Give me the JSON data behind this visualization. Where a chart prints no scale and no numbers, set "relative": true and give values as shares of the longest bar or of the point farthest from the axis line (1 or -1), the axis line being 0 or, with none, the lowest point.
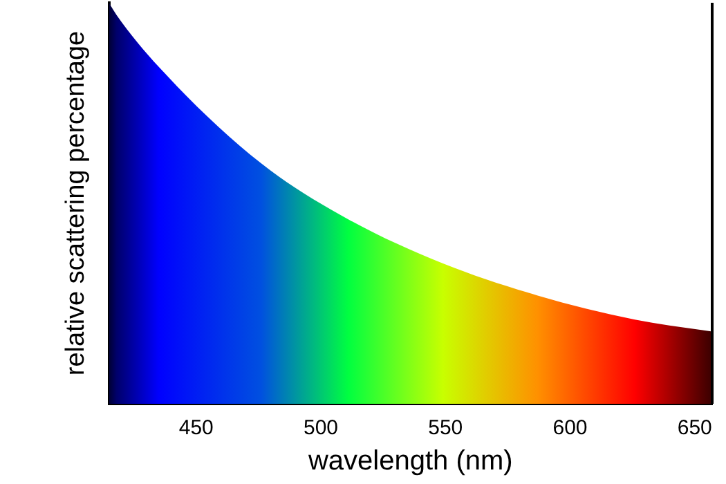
{
  "chart_data": {
    "type": "area",
    "relative": true,
    "xlabel": "wavelength (nm)",
    "ylabel": "relative scattering percentage",
    "x": [
      415,
      418,
      435,
      476,
      511,
      549,
      587,
      626,
      657
    ],
    "xlim": [
      415,
      657
    ],
    "xticks": [
      450,
      500,
      550,
      600,
      650
    ],
    "series": [
      {
        "values": [
          1,
          0.97,
          0.84,
          0.6,
          0.46,
          0.35,
          0.27,
          0.21,
          0.18
        ],
        "colors": [
          "#000033",
          "#00006a",
          "#0000ff",
          "#0050e0",
          "#00ff40",
          "#c8ff00",
          "#ff9000",
          "#ff0000",
          "#3a0000"
        ]
      }
    ],
    "grid": false,
    "legend": false
  }
}
